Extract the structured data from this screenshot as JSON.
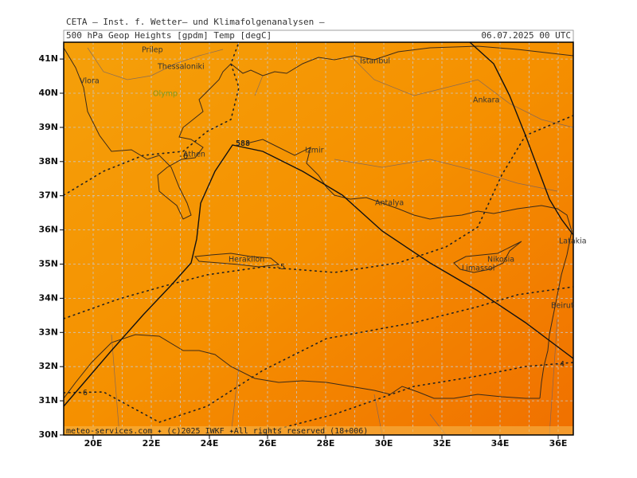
{
  "header": {
    "institute": "CETA — Inst. f. Wetter— und Klimafolgenanalysen —",
    "product": "500 hPa Geop Heights [gpdm] Temp [degC]",
    "valid": "06.07.2025 00 UTC"
  },
  "axes": {
    "latitude_labels": [
      "41N",
      "40N",
      "39N",
      "38N",
      "37N",
      "36N",
      "35N",
      "34N",
      "33N",
      "32N",
      "31N",
      "30N"
    ],
    "longitude_labels": [
      "20E",
      "22E",
      "24E",
      "26E",
      "28E",
      "30E",
      "32E",
      "34E",
      "36E"
    ]
  },
  "places": [
    "Prilep",
    "Thessaloniki",
    "Vlora",
    "Olymp",
    "Athen",
    "Izmir",
    "Istanbul",
    "Ankara",
    "Antalya",
    "Heraklion",
    "Nikosia",
    "Limassol",
    "Latakia",
    "Beirut"
  ],
  "contour_labels": [
    "588",
    "-6",
    "-5",
    "-6",
    "-4"
  ],
  "footer": "meteo-services.com ✦ (c)2025 IWKF ✦All rights reserved (18+006)"
}
